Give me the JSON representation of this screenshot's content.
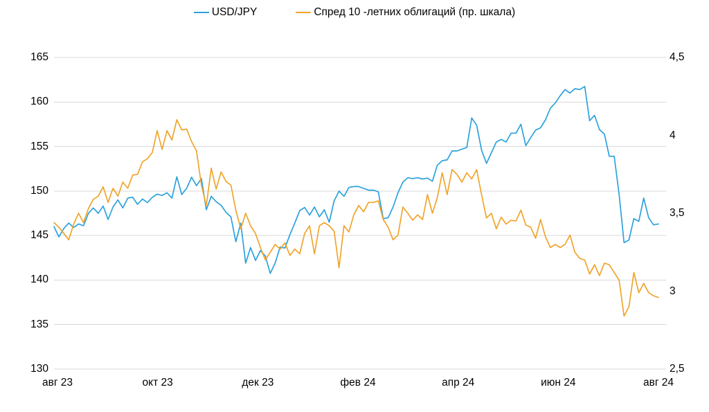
{
  "legend": {
    "items": [
      {
        "label": "USD/JPY",
        "color": "#2BA2DC"
      },
      {
        "label": "Спред 10 -летних облигаций (пр. шкала)",
        "color": "#F0A42C"
      }
    ]
  },
  "colors": {
    "usdjpy_line": "#2BA2DC",
    "spread_line": "#F0A42C",
    "gridline": "#D9D9D9",
    "text": "#000000",
    "background": "#FFFFFF"
  },
  "chart_data": {
    "type": "line",
    "title": "",
    "xlabel": "",
    "ylabel_left": "",
    "ylabel_right": "",
    "grid": true,
    "legend_position": "top-center",
    "x_tick_labels": [
      "авг 23",
      "окт 23",
      "дек 23",
      "фев 24",
      "апр 24",
      "июн 24",
      "авг 24"
    ],
    "left_axis": {
      "range": [
        130,
        165
      ],
      "tick_labels": [
        "165",
        "160",
        "155",
        "150",
        "145",
        "140",
        "135",
        "130"
      ]
    },
    "right_axis": {
      "range": [
        2.5,
        4.5
      ],
      "tick_labels": [
        "4,5",
        "4",
        "3,5",
        "3",
        "2,5"
      ]
    },
    "series": [
      {
        "name": "USD/JPY",
        "axis": "left",
        "color": "#2BA2DC",
        "values": [
          146.0,
          144.85,
          145.8,
          146.4,
          145.9,
          146.3,
          146.1,
          147.5,
          148.1,
          147.5,
          148.3,
          146.8,
          148.2,
          149.0,
          148.1,
          149.2,
          149.3,
          148.5,
          149.1,
          148.7,
          149.3,
          149.65,
          149.5,
          149.8,
          149.2,
          151.6,
          149.6,
          150.3,
          151.55,
          150.6,
          151.4,
          147.9,
          149.4,
          148.8,
          148.4,
          147.6,
          147.1,
          144.3,
          146.4,
          141.9,
          143.65,
          142.2,
          143.3,
          142.7,
          140.75,
          141.9,
          143.7,
          143.6,
          145.1,
          146.4,
          147.8,
          148.15,
          147.3,
          148.2,
          147.1,
          147.9,
          146.5,
          148.9,
          150.0,
          149.4,
          150.4,
          150.5,
          150.5,
          150.3,
          150.1,
          150.1,
          149.9,
          146.9,
          147.0,
          148.2,
          149.8,
          151.0,
          151.5,
          151.4,
          151.5,
          151.35,
          151.45,
          151.1,
          152.9,
          153.4,
          153.5,
          154.5,
          154.5,
          154.7,
          154.9,
          158.2,
          157.4,
          154.6,
          153.1,
          154.3,
          155.5,
          155.8,
          155.5,
          156.5,
          156.5,
          157.5,
          155.1,
          156.0,
          156.85,
          157.1,
          158.0,
          159.3,
          159.9,
          160.7,
          161.4,
          161.0,
          161.5,
          161.4,
          161.75,
          157.9,
          158.5,
          156.9,
          156.4,
          153.9,
          153.9,
          149.6,
          144.2,
          144.5,
          146.9,
          146.6,
          149.2,
          147.0,
          146.2,
          146.3
        ]
      },
      {
        "name": "Спред 10 -летних облигаций (пр. шкала)",
        "axis": "right",
        "color": "#F0A42C",
        "values": [
          3.44,
          3.41,
          3.37,
          3.33,
          3.43,
          3.5,
          3.44,
          3.53,
          3.59,
          3.61,
          3.67,
          3.57,
          3.66,
          3.61,
          3.7,
          3.66,
          3.745,
          3.75,
          3.83,
          3.85,
          3.89,
          4.03,
          3.91,
          4.03,
          3.97,
          4.1,
          4.035,
          4.04,
          3.96,
          3.9,
          3.68,
          3.55,
          3.79,
          3.655,
          3.765,
          3.705,
          3.68,
          3.52,
          3.4,
          3.5,
          3.42,
          3.37,
          3.28,
          3.2,
          3.25,
          3.3,
          3.27,
          3.31,
          3.23,
          3.27,
          3.24,
          3.37,
          3.42,
          3.24,
          3.42,
          3.44,
          3.42,
          3.385,
          3.15,
          3.42,
          3.38,
          3.49,
          3.55,
          3.51,
          3.57,
          3.57,
          3.58,
          3.46,
          3.41,
          3.33,
          3.36,
          3.54,
          3.5,
          3.455,
          3.49,
          3.46,
          3.62,
          3.5,
          3.6,
          3.76,
          3.62,
          3.78,
          3.75,
          3.7,
          3.76,
          3.72,
          3.78,
          3.62,
          3.47,
          3.5,
          3.4,
          3.475,
          3.43,
          3.455,
          3.45,
          3.52,
          3.425,
          3.41,
          3.34,
          3.46,
          3.35,
          3.28,
          3.3,
          3.28,
          3.3,
          3.36,
          3.25,
          3.21,
          3.2,
          3.11,
          3.17,
          3.1,
          3.18,
          3.17,
          3.12,
          3.07,
          2.84,
          2.9,
          3.12,
          2.99,
          3.05,
          2.99,
          2.97,
          2.96
        ]
      }
    ]
  }
}
